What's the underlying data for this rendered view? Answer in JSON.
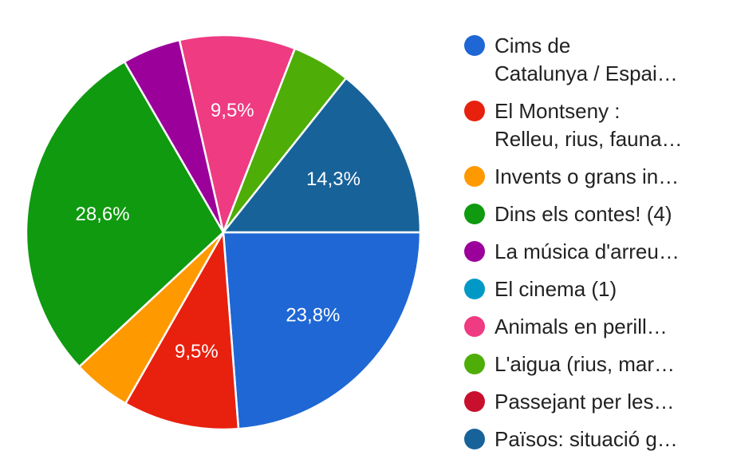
{
  "chart_data": {
    "type": "pie",
    "title": "",
    "legend_position": "right",
    "slices": [
      {
        "label": [
          "Cims de",
          "Catalunya / Espai…"
        ],
        "value": 23.8,
        "display": "23,8%",
        "color": "#1f67d4"
      },
      {
        "label": [
          "El Montseny :",
          "Relleu, rius, fauna…"
        ],
        "value": 9.5,
        "display": "9,5%",
        "color": "#e8200e"
      },
      {
        "label": [
          "Invents o grans in…"
        ],
        "value": 4.8,
        "display": "",
        "color": "#ff9900"
      },
      {
        "label": [
          "Dins els contes! (4)"
        ],
        "value": 28.6,
        "display": "28,6%",
        "color": "#0f9a10"
      },
      {
        "label": [
          "La música d'arreu…"
        ],
        "value": 4.8,
        "display": "",
        "color": "#9b009b"
      },
      {
        "label": [
          "El cinema (1)"
        ],
        "value": 0.0,
        "display": "",
        "color": "#0099c6"
      },
      {
        "label": [
          "Animals en perill…"
        ],
        "value": 9.5,
        "display": "9,5%",
        "color": "#ee3b82"
      },
      {
        "label": [
          "L'aigua (rius, mar…"
        ],
        "value": 4.8,
        "display": "",
        "color": "#4ead07"
      },
      {
        "label": [
          "Passejant per les…"
        ],
        "value": 0.0,
        "display": "",
        "color": "#c8102e"
      },
      {
        "label": [
          "Països: situació g…"
        ],
        "value": 14.3,
        "display": "14,3%",
        "color": "#18629a"
      }
    ]
  }
}
